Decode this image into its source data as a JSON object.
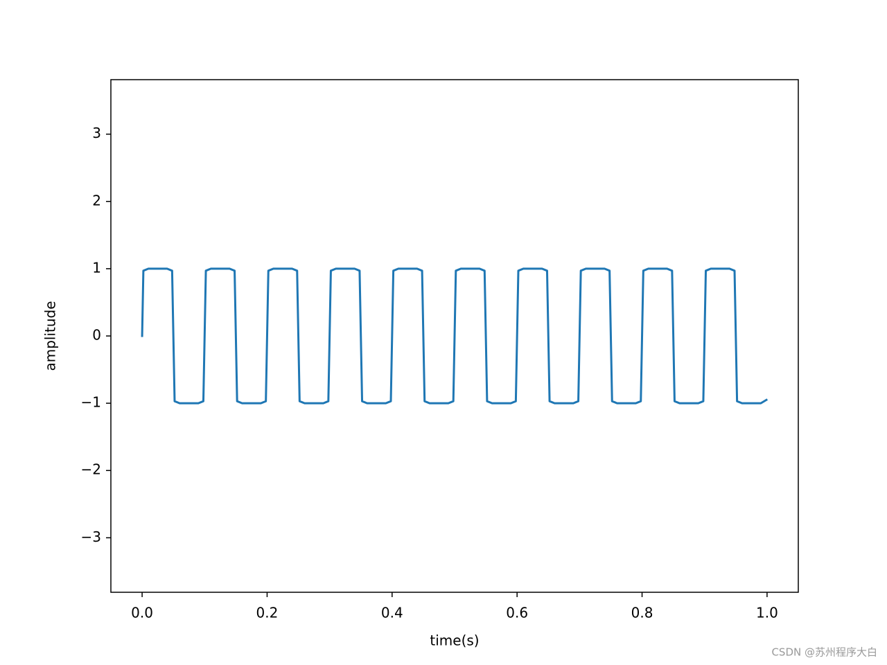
{
  "chart_data": {
    "type": "line",
    "xlabel": "time(s)",
    "ylabel": "amplitude",
    "watermark": "CSDN @苏州程序大白",
    "xlim": [
      -0.05,
      1.05
    ],
    "ylim": [
      -3.81,
      3.81
    ],
    "xticks": [
      {
        "value": 0,
        "label": "0.0"
      },
      0.2,
      0.4,
      0.6,
      0.8,
      {
        "value": 1,
        "label": "1.0"
      }
    ],
    "yticks": [
      {
        "value": -3,
        "label": "−3"
      },
      {
        "value": -2,
        "label": "−2"
      },
      {
        "value": -1,
        "label": "−1"
      },
      0,
      1,
      2,
      3
    ],
    "series": [
      {
        "color": "#1f77b4",
        "x": [
          0,
          0.002,
          0.01,
          0.04,
          0.048,
          0.052,
          0.06,
          0.09,
          0.098,
          0.102,
          0.11,
          0.14,
          0.148,
          0.152,
          0.16,
          0.19,
          0.198,
          0.202,
          0.21,
          0.24,
          0.248,
          0.252,
          0.26,
          0.29,
          0.298,
          0.302,
          0.31,
          0.34,
          0.348,
          0.352,
          0.36,
          0.39,
          0.398,
          0.402,
          0.41,
          0.44,
          0.448,
          0.452,
          0.46,
          0.49,
          0.498,
          0.502,
          0.51,
          0.54,
          0.548,
          0.552,
          0.56,
          0.59,
          0.598,
          0.602,
          0.61,
          0.64,
          0.648,
          0.652,
          0.66,
          0.69,
          0.698,
          0.702,
          0.71,
          0.74,
          0.748,
          0.752,
          0.76,
          0.79,
          0.798,
          0.802,
          0.81,
          0.84,
          0.848,
          0.852,
          0.86,
          0.89,
          0.898,
          0.902,
          0.91,
          0.94,
          0.948,
          0.952,
          0.96,
          0.99,
          0.999
        ],
        "values": [
          0,
          0.97,
          1,
          1,
          0.97,
          -0.97,
          -1,
          -1,
          -0.97,
          0.97,
          1,
          1,
          0.97,
          -0.97,
          -1,
          -1,
          -0.97,
          0.97,
          1,
          1,
          0.97,
          -0.97,
          -1,
          -1,
          -0.97,
          0.97,
          1,
          1,
          0.97,
          -0.97,
          -1,
          -1,
          -0.97,
          0.97,
          1,
          1,
          0.97,
          -0.97,
          -1,
          -1,
          -0.97,
          0.97,
          1,
          1,
          0.97,
          -0.97,
          -1,
          -1,
          -0.97,
          0.97,
          1,
          1,
          0.97,
          -0.97,
          -1,
          -1,
          -0.97,
          0.97,
          1,
          1,
          0.97,
          -0.97,
          -1,
          -1,
          -0.97,
          0.97,
          1,
          1,
          0.97,
          -0.97,
          -1,
          -1,
          -0.97,
          0.97,
          1,
          1,
          0.97,
          -0.97,
          -1,
          -1,
          -0.95
        ]
      }
    ]
  }
}
